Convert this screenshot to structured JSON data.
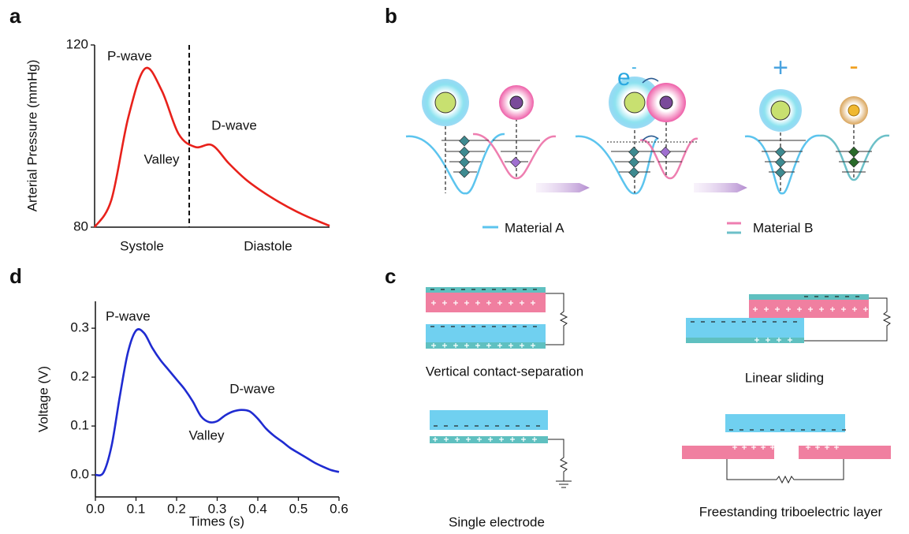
{
  "panel_labels": {
    "a": "a",
    "b": "b",
    "c": "c",
    "d": "d"
  },
  "chart_data": [
    {
      "type": "line",
      "y_label": "Arterial Pressure (mmHg)",
      "categories": [
        null,
        null,
        null,
        null,
        null,
        null,
        null,
        null,
        null,
        null,
        null,
        null,
        null,
        null,
        null
      ],
      "values": [
        80,
        86,
        104,
        114.8,
        110,
        100.5,
        97.6,
        98,
        94,
        90.5,
        87.8,
        85.5,
        83.5,
        81.8,
        80.3
      ],
      "color": "#e8211b",
      "ylim": [
        80,
        120
      ],
      "yticks": [
        80,
        120
      ],
      "annotations": [
        "P-wave",
        "Valley",
        "D-wave"
      ],
      "phases": [
        "Systole",
        "Diastole"
      ]
    },
    {
      "type": "line",
      "x_label": "Times (s)",
      "y_label": "Voltage (V)",
      "x": [
        0,
        0.02,
        0.04,
        0.06,
        0.08,
        0.1,
        0.12,
        0.14,
        0.16,
        0.18,
        0.2,
        0.22,
        0.24,
        0.26,
        0.28,
        0.3,
        0.32,
        0.34,
        0.36,
        0.38,
        0.4,
        0.42,
        0.44,
        0.46,
        0.48,
        0.5,
        0.52,
        0.54,
        0.56,
        0.58,
        0.6
      ],
      "values": [
        0.0,
        0.005,
        0.06,
        0.16,
        0.25,
        0.295,
        0.29,
        0.26,
        0.235,
        0.215,
        0.195,
        0.175,
        0.15,
        0.12,
        0.108,
        0.11,
        0.122,
        0.13,
        0.133,
        0.13,
        0.115,
        0.095,
        0.08,
        0.068,
        0.055,
        0.045,
        0.035,
        0.025,
        0.017,
        0.01,
        0.006
      ],
      "color": "#1f2bd1",
      "xlim": [
        0,
        0.6
      ],
      "xticks": [
        {
          "value": 0,
          "label": "0.0"
        },
        0.1,
        0.2,
        0.3,
        0.4,
        0.5,
        0.6
      ],
      "ylim": [
        -0.045,
        0.355
      ],
      "yticks": [
        {
          "value": 0,
          "label": "0.0"
        },
        0.1,
        0.2,
        0.3
      ],
      "annotations": [
        "P-wave",
        "Valley",
        "D-wave"
      ]
    }
  ],
  "diagram_b": {
    "electron": "e",
    "electron_charge": "-",
    "positive": "+",
    "negative": "-",
    "legend": [
      "Material A",
      "Material B"
    ]
  },
  "diagram_c": {
    "modes": [
      "Vertical contact-separation",
      "Linear sliding",
      "Single electrode",
      "Freestanding triboelectric layer"
    ]
  }
}
